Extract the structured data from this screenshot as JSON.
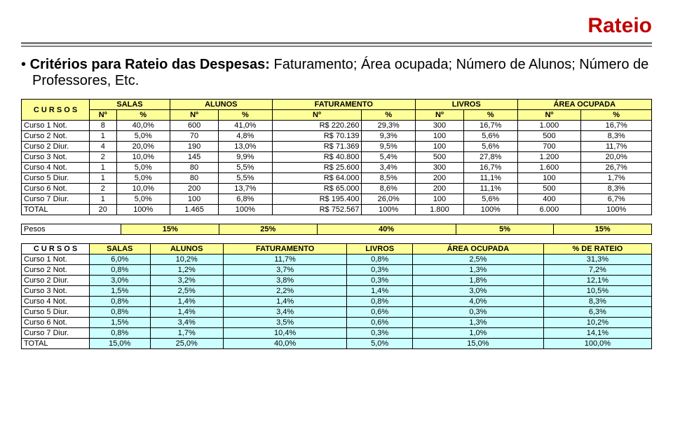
{
  "title": "Rateio",
  "title_color": "#c00000",
  "bullet": {
    "bold": "Critérios para Rateio das Despesas:",
    "rest": " Faturamento; Área ocupada; Número de Alunos; Número de Professores, Etc."
  },
  "table1": {
    "cursos_label": "C U R S O S",
    "group_headers": [
      "SALAS",
      "ALUNOS",
      "FATURAMENTO",
      "LIVROS",
      "ÁREA OCUPADA"
    ],
    "sub_headers": [
      "Nº",
      "%",
      "Nº",
      "%",
      "Nº",
      "%",
      "Nº",
      "%",
      "Nº",
      "%"
    ],
    "rows": [
      {
        "label": "Curso 1 Not.",
        "c": [
          "8",
          "40,0%",
          "600",
          "41,0%",
          "R$ 220.260",
          "29,3%",
          "300",
          "16,7%",
          "1.000",
          "16,7%"
        ]
      },
      {
        "label": "Curso 2 Not.",
        "c": [
          "1",
          "5,0%",
          "70",
          "4,8%",
          "R$ 70.139",
          "9,3%",
          "100",
          "5,6%",
          "500",
          "8,3%"
        ]
      },
      {
        "label": "Curso 2 Diur.",
        "c": [
          "4",
          "20,0%",
          "190",
          "13,0%",
          "R$ 71.369",
          "9,5%",
          "100",
          "5,6%",
          "700",
          "11,7%"
        ]
      },
      {
        "label": "Curso 3 Not.",
        "c": [
          "2",
          "10,0%",
          "145",
          "9,9%",
          "R$ 40.800",
          "5,4%",
          "500",
          "27,8%",
          "1.200",
          "20,0%"
        ]
      },
      {
        "label": "Curso 4 Not.",
        "c": [
          "1",
          "5,0%",
          "80",
          "5,5%",
          "R$ 25.600",
          "3,4%",
          "300",
          "16,7%",
          "1.600",
          "26,7%"
        ]
      },
      {
        "label": "Curso 5 Diur.",
        "c": [
          "1",
          "5,0%",
          "80",
          "5,5%",
          "R$ 64.000",
          "8,5%",
          "200",
          "11,1%",
          "100",
          "1,7%"
        ]
      },
      {
        "label": "Curso 6 Not.",
        "c": [
          "2",
          "10,0%",
          "200",
          "13,7%",
          "R$ 65.000",
          "8,6%",
          "200",
          "11,1%",
          "500",
          "8,3%"
        ]
      },
      {
        "label": "Curso 7 Diur.",
        "c": [
          "1",
          "5,0%",
          "100",
          "6,8%",
          "R$ 195.400",
          "26,0%",
          "100",
          "5,6%",
          "400",
          "6,7%"
        ]
      }
    ],
    "total": {
      "label": "TOTAL",
      "c": [
        "20",
        "100%",
        "1.465",
        "100%",
        "R$ 752.567",
        "100%",
        "1.800",
        "100%",
        "6.000",
        "100%"
      ]
    }
  },
  "pesos": {
    "label": "Pesos",
    "values": [
      "15%",
      "25%",
      "40%",
      "5%",
      "15%"
    ]
  },
  "table2": {
    "headers": [
      "C U R S O S",
      "SALAS",
      "ALUNOS",
      "FATURAMENTO",
      "LIVROS",
      "ÁREA OCUPADA",
      "% DE RATEIO"
    ],
    "rows": [
      {
        "label": "Curso 1 Not.",
        "c": [
          "6,0%",
          "10,2%",
          "11,7%",
          "0,8%",
          "2,5%",
          "31,3%"
        ]
      },
      {
        "label": "Curso 2 Not.",
        "c": [
          "0,8%",
          "1,2%",
          "3,7%",
          "0,3%",
          "1,3%",
          "7,2%"
        ]
      },
      {
        "label": "Curso 2 Diur.",
        "c": [
          "3,0%",
          "3,2%",
          "3,8%",
          "0,3%",
          "1,8%",
          "12,1%"
        ]
      },
      {
        "label": "Curso 3 Not.",
        "c": [
          "1,5%",
          "2,5%",
          "2,2%",
          "1,4%",
          "3,0%",
          "10,5%"
        ]
      },
      {
        "label": "Curso 4 Not.",
        "c": [
          "0,8%",
          "1,4%",
          "1,4%",
          "0,8%",
          "4,0%",
          "8,3%"
        ]
      },
      {
        "label": "Curso 5 Diur.",
        "c": [
          "0,8%",
          "1,4%",
          "3,4%",
          "0,6%",
          "0,3%",
          "6,3%"
        ]
      },
      {
        "label": "Curso 6 Not.",
        "c": [
          "1,5%",
          "3,4%",
          "3,5%",
          "0,6%",
          "1,3%",
          "10,2%"
        ]
      },
      {
        "label": "Curso 7 Diur.",
        "c": [
          "0,8%",
          "1,7%",
          "10,4%",
          "0,3%",
          "1,0%",
          "14,1%"
        ]
      }
    ],
    "total": {
      "label": "TOTAL",
      "c": [
        "15,0%",
        "25,0%",
        "40,0%",
        "5,0%",
        "15,0%",
        "100,0%"
      ]
    }
  }
}
